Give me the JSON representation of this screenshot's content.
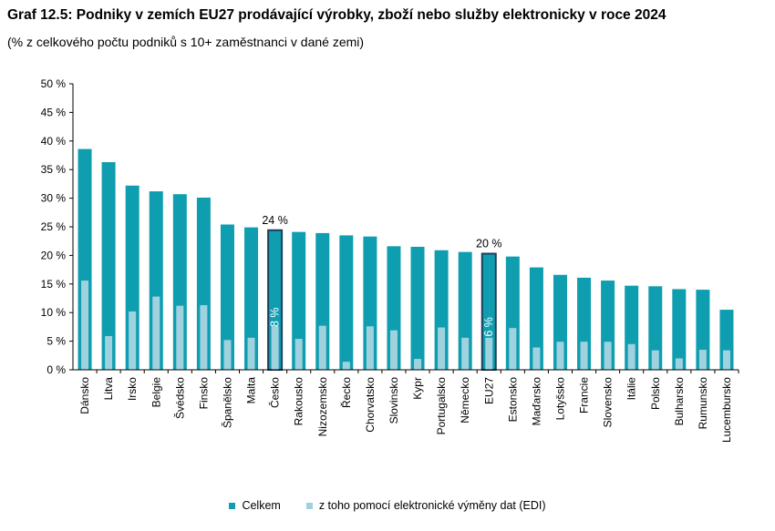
{
  "title": "Graf 12.5: Podniky v zemích EU27 prodávající výrobky, zboží nebo služby elektronicky v roce 2024",
  "subtitle": "(% z celkového počtu podniků s 10+ zaměstnanci v dané zemi)",
  "colors": {
    "total": "#0e9eb0",
    "edi": "#9fd2de",
    "highlight_border": "#1f3d5a",
    "axis": "#000000"
  },
  "chart_data": {
    "type": "bar",
    "title": "Graf 12.5: Podniky v zemích EU27 prodávající výrobky, zboží nebo služby elektronicky v roce 2024",
    "subtitle": "(% z celkového počtu podniků s 10+ zaměstnanci v dané zemi)",
    "ylim": [
      0,
      50
    ],
    "yticks": [
      "0 %",
      "5 %",
      "10 %",
      "15 %",
      "20 %",
      "25 %",
      "30 %",
      "35 %",
      "40 %",
      "45 %",
      "50 %"
    ],
    "grid": false,
    "legend_position": "bottom",
    "categories": [
      "Dánsko",
      "Litva",
      "Irsko",
      "Belgie",
      "Švédsko",
      "Finsko",
      "Španělsko",
      "Malta",
      "Česko",
      "Rakousko",
      "Nizozemsko",
      "Řecko",
      "Chorvatsko",
      "Slovinsko",
      "Kypr",
      "Portugalsko",
      "Německo",
      "EU27",
      "Estonsko",
      "Maďarsko",
      "Lotyšsko",
      "Francie",
      "Slovensko",
      "Itálie",
      "Polsko",
      "Bulharsko",
      "Rumunsko",
      "Lucembursko"
    ],
    "highlighted": [
      "Česko",
      "EU27"
    ],
    "series": [
      {
        "name": "Celkem",
        "values": [
          38.6,
          36.3,
          32.2,
          31.2,
          30.7,
          30.1,
          25.4,
          24.9,
          24.4,
          24.1,
          23.9,
          23.5,
          23.3,
          21.6,
          21.5,
          20.9,
          20.6,
          20.3,
          19.8,
          17.9,
          16.6,
          16.1,
          15.6,
          14.7,
          14.6,
          14.1,
          14.0,
          10.5
        ]
      },
      {
        "name": "z toho pomocí elektronické výměny dat (EDI)",
        "values": [
          15.6,
          5.9,
          10.2,
          12.8,
          11.2,
          11.3,
          5.2,
          5.6,
          7.6,
          5.4,
          7.7,
          1.4,
          7.6,
          6.9,
          1.9,
          7.4,
          5.6,
          5.6,
          7.3,
          3.9,
          4.9,
          4.9,
          4.9,
          4.5,
          3.4,
          2.0,
          3.5,
          3.4
        ]
      }
    ],
    "annotations": [
      {
        "category": "Česko",
        "total_label": "24 %",
        "edi_label": "8 %"
      },
      {
        "category": "EU27",
        "total_label": "20 %",
        "edi_label": "6 %"
      }
    ]
  }
}
